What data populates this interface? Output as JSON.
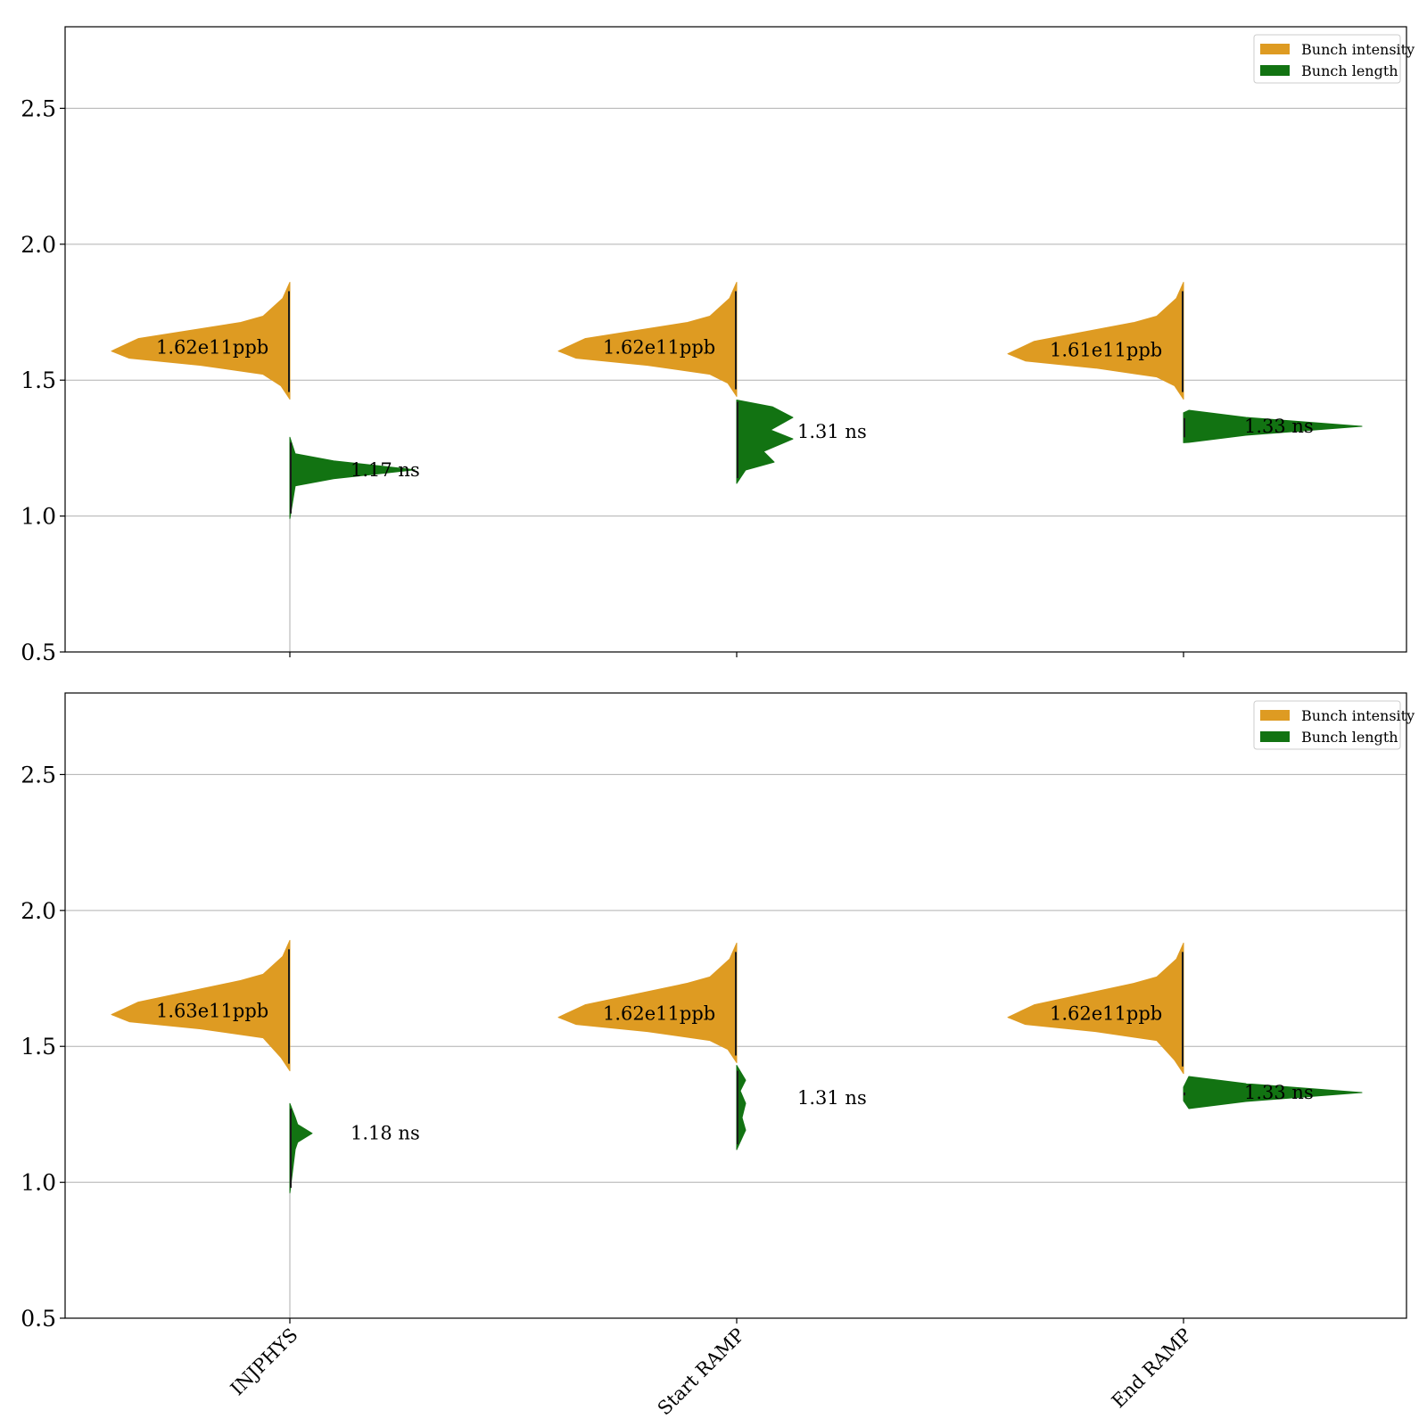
{
  "colors": {
    "intensity": "#DE9B22",
    "length": "#127312",
    "grid": "#b0b0b0",
    "axis": "#000000",
    "inner": "#1a1a1a"
  },
  "chart_data": [
    {
      "type": "violin",
      "panel": "top",
      "ylim": [
        0.5,
        2.8
      ],
      "yticks": [
        "0.5",
        "1.0",
        "1.5",
        "2.0",
        "2.5"
      ],
      "ytick_values": [
        0.5,
        1.0,
        1.5,
        2.0,
        2.5
      ],
      "grid": "horizontal",
      "legend": {
        "placement": "top-right",
        "entries": [
          "Bunch intensity",
          "Bunch length"
        ]
      },
      "categories": [
        "INJPHYS",
        "Start RAMP",
        "End RAMP"
      ],
      "show_category_labels": false,
      "series": [
        {
          "name": "Bunch intensity",
          "side": "left",
          "medians": [
            1.62,
            1.62,
            1.61
          ],
          "ranges": [
            [
              1.43,
              1.86
            ],
            [
              1.44,
              1.86
            ],
            [
              1.43,
              1.86
            ]
          ],
          "labels": [
            "1.62e11ppb",
            "1.62e11ppb",
            "1.61e11ppb"
          ]
        },
        {
          "name": "Bunch length",
          "side": "right",
          "medians": [
            1.17,
            1.31,
            1.33
          ],
          "ranges": [
            [
              0.99,
              1.29
            ],
            [
              1.12,
              1.44
            ],
            [
              1.27,
              1.38
            ]
          ],
          "labels": [
            "1.17 ns",
            "1.31 ns",
            "1.33 ns"
          ]
        }
      ]
    },
    {
      "type": "violin",
      "panel": "bottom",
      "ylim": [
        0.5,
        2.8
      ],
      "yticks": [
        "0.5",
        "1.0",
        "1.5",
        "2.0",
        "2.5"
      ],
      "ytick_values": [
        0.5,
        1.0,
        1.5,
        2.0,
        2.5
      ],
      "grid": "horizontal",
      "legend": {
        "placement": "top-right",
        "entries": [
          "Bunch intensity",
          "Bunch length"
        ]
      },
      "categories": [
        "INJPHYS",
        "Start RAMP",
        "End RAMP"
      ],
      "show_category_labels": true,
      "series": [
        {
          "name": "Bunch intensity",
          "side": "left",
          "medians": [
            1.63,
            1.62,
            1.62
          ],
          "ranges": [
            [
              1.41,
              1.89
            ],
            [
              1.44,
              1.88
            ],
            [
              1.4,
              1.88
            ]
          ],
          "labels": [
            "1.63e11ppb",
            "1.62e11ppb",
            "1.62e11ppb"
          ]
        },
        {
          "name": "Bunch length",
          "side": "right",
          "medians": [
            1.18,
            1.31,
            1.33
          ],
          "ranges": [
            [
              0.96,
              1.29
            ],
            [
              1.12,
              1.43
            ],
            [
              1.3,
              1.35
            ]
          ],
          "labels": [
            "1.18 ns",
            "1.31 ns",
            "1.33 ns"
          ]
        }
      ]
    }
  ]
}
